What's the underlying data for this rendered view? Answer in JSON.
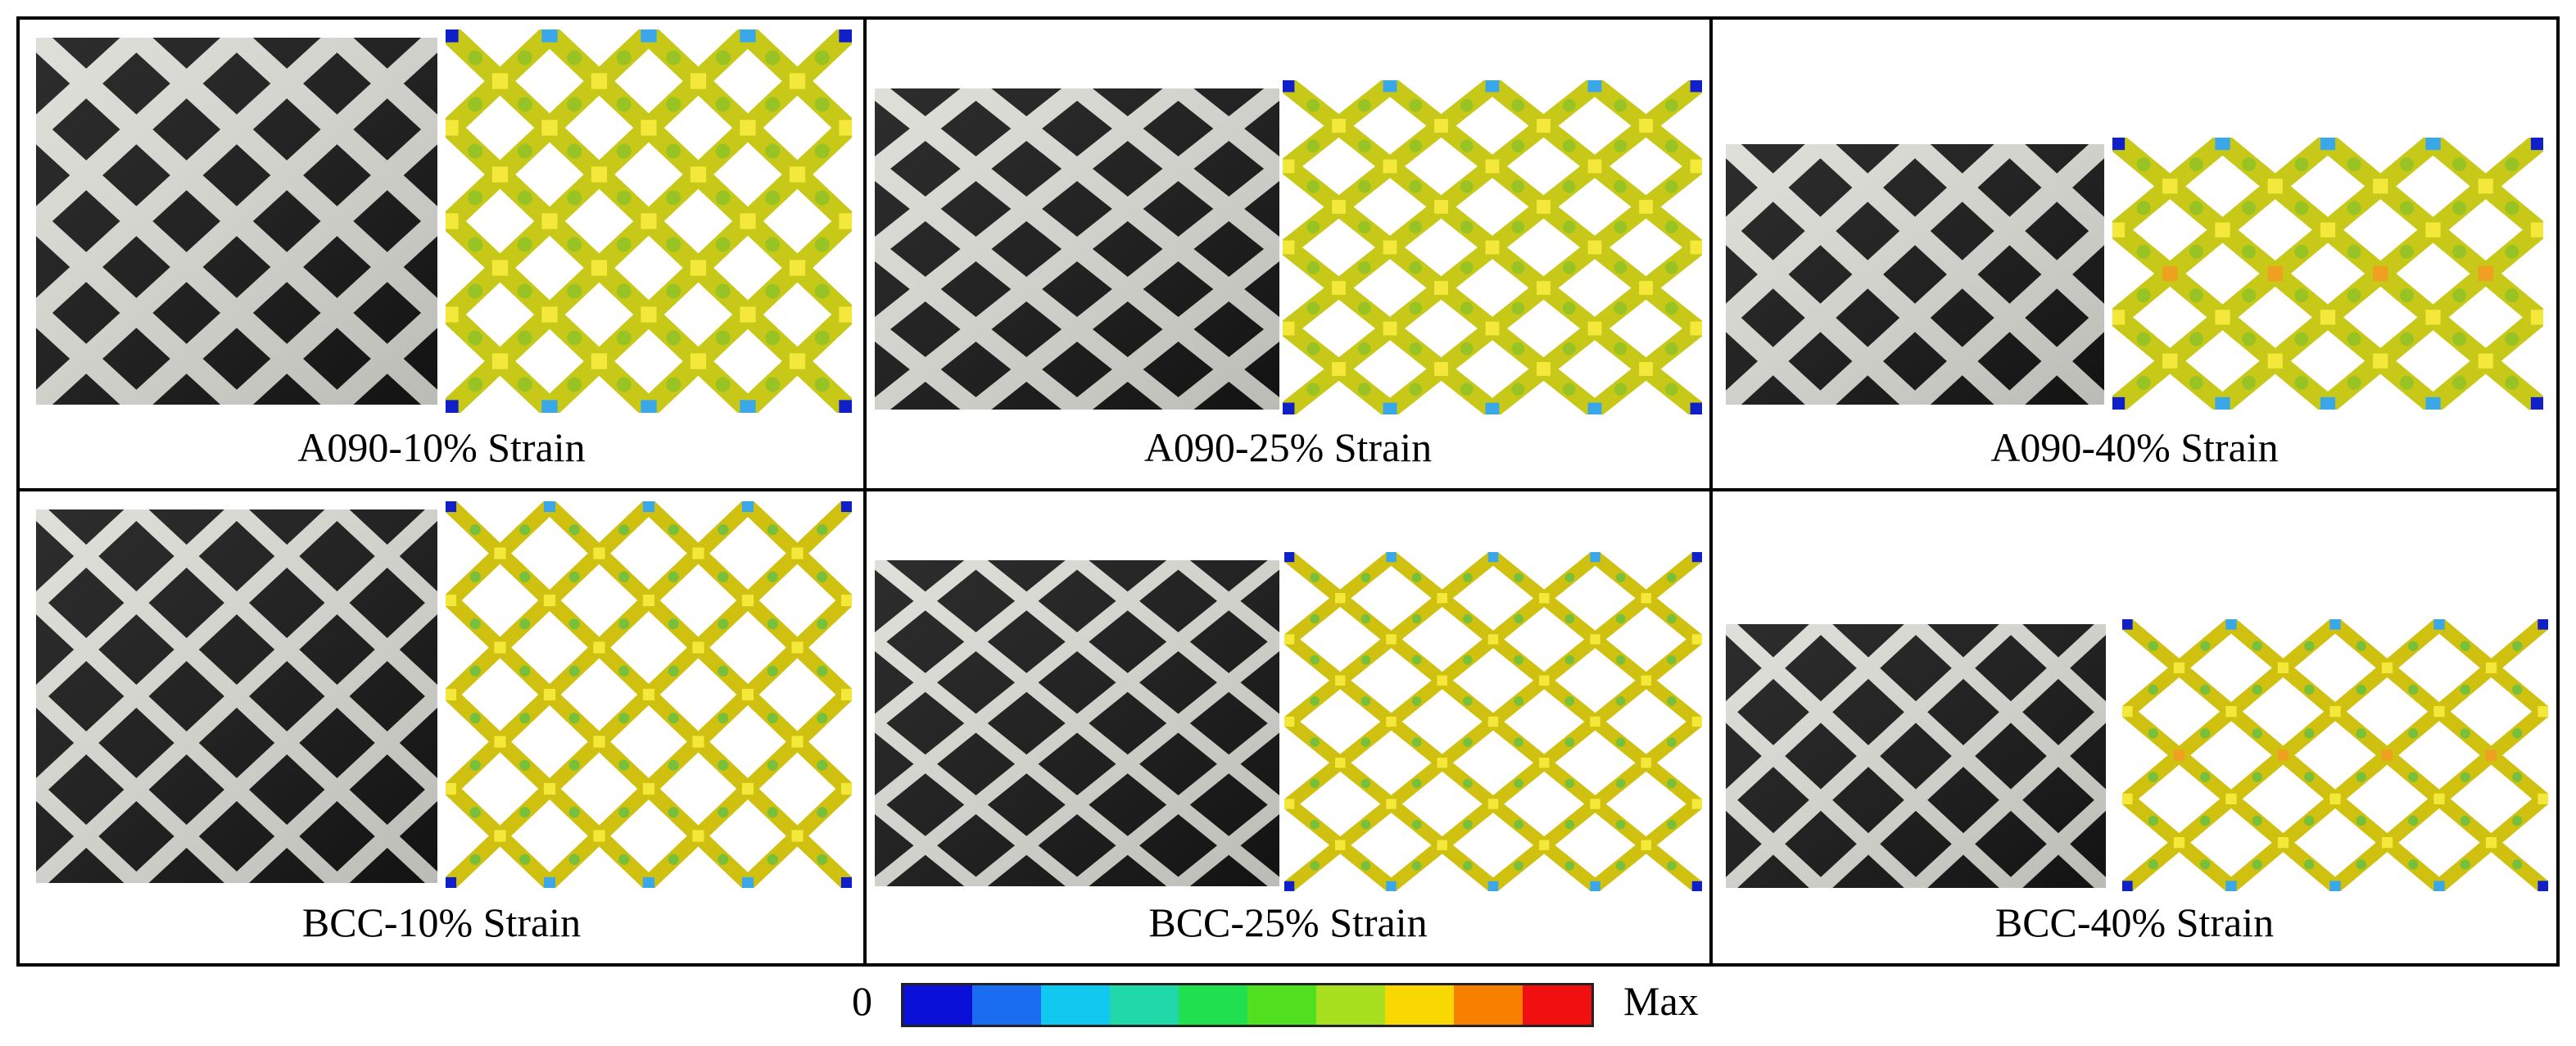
{
  "panels": [
    {
      "label": "A090-10% Strain",
      "lattice": "A090",
      "strain": 0.1
    },
    {
      "label": "A090-25% Strain",
      "lattice": "A090",
      "strain": 0.25
    },
    {
      "label": "A090-40% Strain",
      "lattice": "A090",
      "strain": 0.4
    },
    {
      "label": "BCC-10% Strain",
      "lattice": "BCC",
      "strain": 0.1
    },
    {
      "label": "BCC-25% Strain",
      "lattice": "BCC",
      "strain": 0.25
    },
    {
      "label": "BCC-40% Strain",
      "lattice": "BCC",
      "strain": 0.4
    }
  ],
  "colorbar": {
    "min_label": "0",
    "max_label": "Max",
    "colors": [
      "#0a10d8",
      "#1a6cf0",
      "#10c8f0",
      "#20d8a8",
      "#20e050",
      "#50e020",
      "#a8e020",
      "#f8d800",
      "#f88000",
      "#f01010"
    ]
  },
  "colors": {
    "photo_bg": "#151515",
    "photo_strut": "#dcdcd6",
    "fem_strut_a090": "#c8c818",
    "fem_strut_bcc": "#d0c010",
    "fem_node": "#f4e83a",
    "fem_edge": "#3aa8e8",
    "fem_corner": "#1020c8",
    "fem_hot": "#e04010"
  }
}
